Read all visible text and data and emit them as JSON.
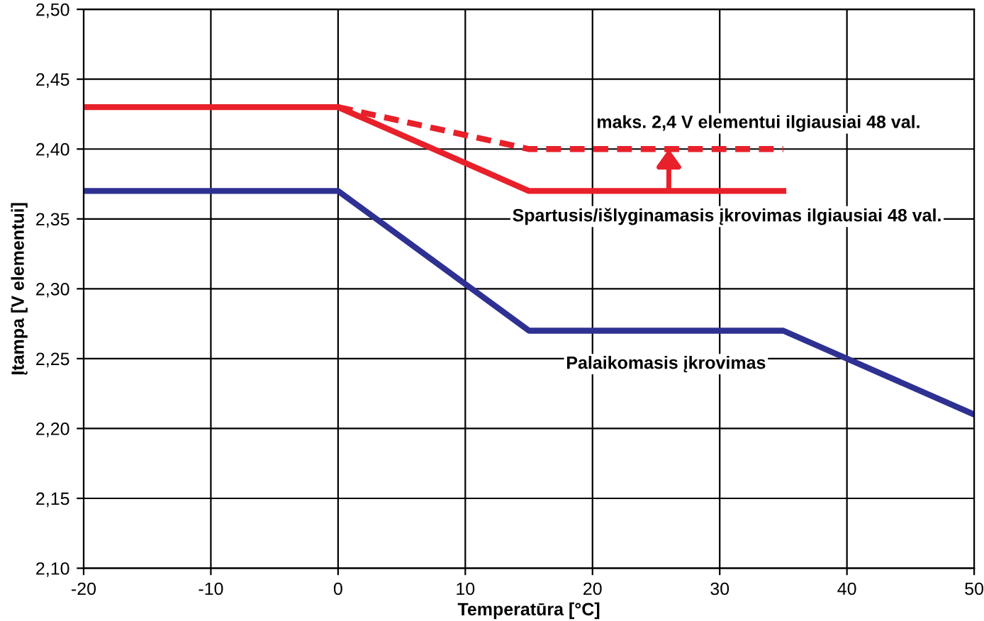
{
  "chart_data": {
    "type": "line",
    "xlabel": "Temperatūra [°C]",
    "ylabel": "Įtampa [V elementui]",
    "xlim": [
      -20,
      50
    ],
    "xticks": [
      -20,
      -10,
      0,
      10,
      20,
      30,
      40,
      50
    ],
    "ylim": [
      2.1,
      2.5
    ],
    "yticks": [
      {
        "value": 2.1,
        "label": "2,10"
      },
      {
        "value": 2.15,
        "label": "2,15"
      },
      {
        "value": 2.2,
        "label": "2,20"
      },
      {
        "value": 2.25,
        "label": "2,25"
      },
      {
        "value": 2.3,
        "label": "2,30"
      },
      {
        "value": 2.35,
        "label": "2,35"
      },
      {
        "value": 2.4,
        "label": "2,40"
      },
      {
        "value": 2.45,
        "label": "2,45"
      },
      {
        "value": 2.5,
        "label": "2,50"
      }
    ],
    "grid": true,
    "series": [
      {
        "name": "Palaikomasis įkrovimas",
        "color": "#2e3192",
        "x": [
          -20,
          0,
          15,
          35,
          50
        ],
        "values": [
          2.37,
          2.37,
          2.27,
          2.27,
          2.21
        ],
        "line_style": "solid"
      },
      {
        "name": "Spartusis/išlyginamasis įkrovimas ilgiausiai 48 val.",
        "color": "#e8202a",
        "x": [
          -20,
          0,
          15,
          35
        ],
        "values": [
          2.43,
          2.43,
          2.37,
          2.37
        ],
        "line_style": "solid"
      },
      {
        "name": "maks. 2,4 V elementui ilgiausiai 48 val.",
        "color": "#e8202a",
        "x": [
          0,
          15,
          35
        ],
        "values": [
          2.43,
          2.4,
          2.4
        ],
        "line_style": "dashed"
      }
    ]
  }
}
